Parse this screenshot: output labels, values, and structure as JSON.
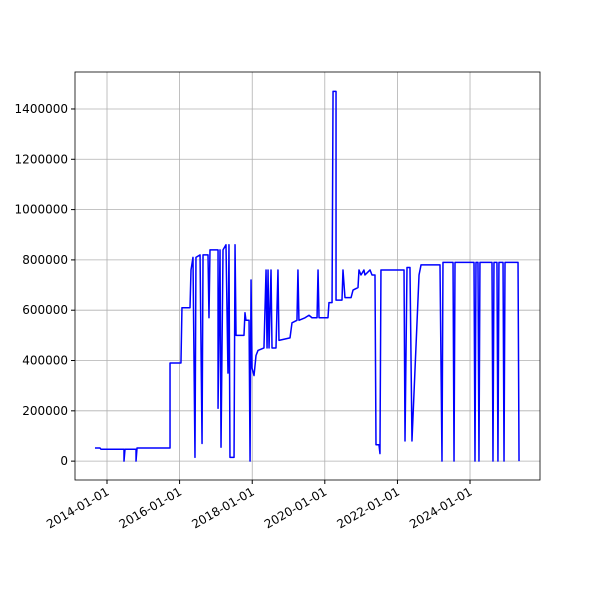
{
  "chart_data": {
    "type": "line",
    "xlim": [
      "2013-02-13",
      "2025-12-05"
    ],
    "xticks": [
      "2014-01-01",
      "2016-01-01",
      "2018-01-01",
      "2020-01-01",
      "2022-01-01",
      "2024-01-01"
    ],
    "ylim": [
      -75000,
      1547000
    ],
    "yticks": [
      0,
      200000,
      400000,
      600000,
      800000,
      1000000,
      1200000,
      1400000
    ],
    "grid": true,
    "series": [
      {
        "color": "#0000ff",
        "x": [
          "2013-09-02",
          "2013-10-23",
          "2013-11-02",
          "2014-06-21",
          "2014-06-21",
          "2014-07-01",
          "2014-10-20",
          "2014-10-20",
          "2014-10-30",
          "2015-09-27",
          "2015-09-27",
          "2016-01-15",
          "2016-01-25",
          "2016-04-15",
          "2016-04-25",
          "2016-05-15",
          "2016-06-04",
          "2016-06-14",
          "2016-07-25",
          "2016-08-14",
          "2016-08-24",
          "2016-10-13",
          "2016-10-23",
          "2016-11-02",
          "2017-01-22",
          "2017-01-22",
          "2017-02-11",
          "2017-02-21",
          "2017-03-13",
          "2017-04-12",
          "2017-05-02",
          "2017-05-12",
          "2017-05-22",
          "2017-07-02",
          "2017-07-12",
          "2017-07-22",
          "2017-10-10",
          "2017-10-20",
          "2017-10-30",
          "2017-11-30",
          "2017-12-10",
          "2017-12-20",
          "2017-12-30",
          "2018-01-19",
          "2018-02-08",
          "2018-02-28",
          "2018-04-29",
          "2018-05-20",
          "2018-05-30",
          "2018-06-09",
          "2018-06-19",
          "2018-07-09",
          "2018-07-19",
          "2018-08-28",
          "2018-09-17",
          "2018-09-27",
          "2019-01-16",
          "2019-02-05",
          "2019-03-27",
          "2019-04-06",
          "2019-04-16",
          "2019-06-16",
          "2019-07-26",
          "2019-08-25",
          "2019-10-15",
          "2019-10-25",
          "2019-11-04",
          "2020-02-02",
          "2020-02-12",
          "2020-03-14",
          "2020-03-24",
          "2020-04-23",
          "2020-04-23",
          "2020-06-22",
          "2020-07-02",
          "2020-07-22",
          "2020-09-21",
          "2020-10-11",
          "2020-11-30",
          "2020-12-10",
          "2020-12-30",
          "2021-01-29",
          "2021-02-08",
          "2021-03-31",
          "2021-04-20",
          "2021-05-20",
          "2021-05-30",
          "2021-06-29",
          "2021-07-09",
          "2021-07-19",
          "2022-03-08",
          "2022-03-18",
          "2022-04-07",
          "2022-05-07",
          "2022-05-27",
          "2022-08-06",
          "2022-08-26",
          "2023-03-05",
          "2023-03-25",
          "2023-04-04",
          "2023-07-14",
          "2023-07-24",
          "2023-08-03",
          "2024-02-10",
          "2024-02-20",
          "2024-03-01",
          "2024-03-21",
          "2024-03-31",
          "2024-04-10",
          "2024-08-09",
          "2024-08-19",
          "2024-08-29",
          "2024-09-28",
          "2024-10-08",
          "2024-10-18",
          "2024-11-28",
          "2024-12-08",
          "2024-12-18",
          "2025-04-28",
          "2025-05-08"
        ],
        "values": [
          52000,
          52000,
          47000,
          47000,
          0,
          47000,
          47000,
          0,
          52000,
          52000,
          390000,
          390000,
          610000,
          610000,
          760000,
          810000,
          15000,
          810000,
          820000,
          70000,
          820000,
          820000,
          570000,
          840000,
          840000,
          210000,
          840000,
          55000,
          840000,
          860000,
          350000,
          860000,
          15000,
          15000,
          860000,
          500000,
          500000,
          590000,
          560000,
          560000,
          0,
          720000,
          370000,
          340000,
          420000,
          440000,
          450000,
          760000,
          450000,
          760000,
          450000,
          760000,
          450000,
          450000,
          760000,
          480000,
          490000,
          550000,
          560000,
          760000,
          560000,
          570000,
          580000,
          570000,
          570000,
          760000,
          570000,
          570000,
          630000,
          630000,
          1470000,
          1470000,
          640000,
          640000,
          760000,
          650000,
          650000,
          680000,
          690000,
          760000,
          740000,
          760000,
          740000,
          760000,
          740000,
          740000,
          65000,
          65000,
          30000,
          760000,
          760000,
          80000,
          770000,
          770000,
          80000,
          740000,
          780000,
          780000,
          0,
          790000,
          790000,
          0,
          790000,
          790000,
          0,
          790000,
          790000,
          0,
          790000,
          790000,
          0,
          790000,
          790000,
          0,
          790000,
          790000,
          0,
          790000,
          790000,
          0
        ]
      }
    ]
  }
}
